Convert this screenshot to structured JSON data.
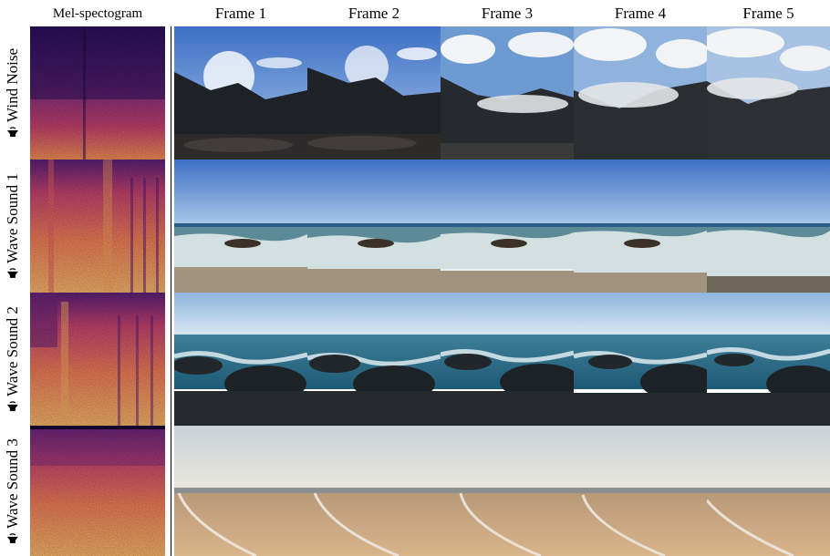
{
  "headers": {
    "spectrogram": "Mel-spectogram",
    "frames": [
      "Frame 1",
      "Frame 2",
      "Frame 3",
      "Frame 4",
      "Frame 5"
    ]
  },
  "rows": [
    {
      "label": "Wind Noise",
      "scene": "mountain-clouds"
    },
    {
      "label": "Wave Sound 1",
      "scene": "waves-shore"
    },
    {
      "label": "Wave Sound 2",
      "scene": "waves-rocks"
    },
    {
      "label": "Wave Sound 3",
      "scene": "sandy-beach"
    }
  ],
  "icons": {
    "row_label": "speaker-sound-icon"
  },
  "colors": {
    "spec_dark": "#3a1466",
    "spec_mid": "#b43a78",
    "spec_hot": "#f7a15a"
  }
}
